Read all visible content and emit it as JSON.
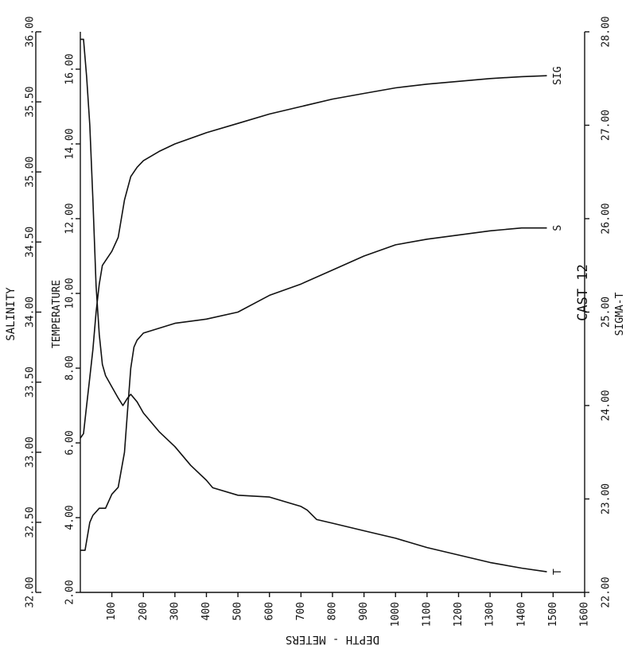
{
  "chart_data": {
    "type": "line",
    "cast_label": "CAST  12",
    "depth_axis": {
      "label": "DEPTH - METERS",
      "range": [
        0,
        1600
      ],
      "ticks": [
        "100",
        "200",
        "300",
        "400",
        "500",
        "600",
        "700",
        "800",
        "900",
        "1000",
        "1100",
        "1200",
        "1300",
        "1400",
        "1500",
        "1600"
      ]
    },
    "salinity_axis": {
      "label": "SALINITY",
      "range": [
        32.0,
        36.0
      ],
      "ticks": [
        "32.00",
        "32.50",
        "33.00",
        "33.50",
        "34.00",
        "34.50",
        "35.00",
        "35.50",
        "36.00"
      ]
    },
    "temperature_axis": {
      "label": "TEMPERATURE",
      "range": [
        2.0,
        17.0
      ],
      "ticks": [
        "2.00",
        "4.00",
        "6.00",
        "8.00",
        "10.00",
        "12.00",
        "14.00",
        "16.00"
      ]
    },
    "sigma_axis": {
      "label": "SIGMA-T",
      "range": [
        22.0,
        28.0
      ],
      "ticks": [
        "22.00",
        "23.00",
        "24.00",
        "25.00",
        "26.00",
        "27.00",
        "28.00"
      ]
    },
    "series": [
      {
        "name": "T",
        "axis": "temperature",
        "points": [
          [
            0,
            16.8
          ],
          [
            10,
            16.8
          ],
          [
            20,
            15.8
          ],
          [
            30,
            14.5
          ],
          [
            40,
            12.5
          ],
          [
            50,
            10.2
          ],
          [
            60,
            8.9
          ],
          [
            70,
            8.1
          ],
          [
            80,
            7.8
          ],
          [
            100,
            7.5
          ],
          [
            120,
            7.2
          ],
          [
            135,
            7.0
          ],
          [
            150,
            7.2
          ],
          [
            160,
            7.3
          ],
          [
            180,
            7.1
          ],
          [
            200,
            6.8
          ],
          [
            250,
            6.3
          ],
          [
            300,
            5.9
          ],
          [
            350,
            5.4
          ],
          [
            400,
            5.0
          ],
          [
            420,
            4.8
          ],
          [
            500,
            4.6
          ],
          [
            600,
            4.55
          ],
          [
            700,
            4.3
          ],
          [
            720,
            4.2
          ],
          [
            750,
            3.95
          ],
          [
            800,
            3.85
          ],
          [
            900,
            3.65
          ],
          [
            1000,
            3.45
          ],
          [
            1100,
            3.2
          ],
          [
            1200,
            3.0
          ],
          [
            1300,
            2.8
          ],
          [
            1400,
            2.65
          ],
          [
            1480,
            2.55
          ]
        ]
      },
      {
        "name": "S",
        "axis": "salinity",
        "points": [
          [
            0,
            32.3
          ],
          [
            15,
            32.3
          ],
          [
            30,
            32.5
          ],
          [
            40,
            32.55
          ],
          [
            60,
            32.6
          ],
          [
            80,
            32.6
          ],
          [
            100,
            32.7
          ],
          [
            120,
            32.75
          ],
          [
            140,
            33.0
          ],
          [
            150,
            33.3
          ],
          [
            160,
            33.6
          ],
          [
            170,
            33.75
          ],
          [
            180,
            33.8
          ],
          [
            200,
            33.85
          ],
          [
            300,
            33.92
          ],
          [
            400,
            33.95
          ],
          [
            500,
            34.0
          ],
          [
            600,
            34.12
          ],
          [
            700,
            34.2
          ],
          [
            800,
            34.3
          ],
          [
            900,
            34.4
          ],
          [
            1000,
            34.48
          ],
          [
            1100,
            34.52
          ],
          [
            1200,
            34.55
          ],
          [
            1300,
            34.58
          ],
          [
            1400,
            34.6
          ],
          [
            1480,
            34.6
          ]
        ]
      },
      {
        "name": "SIG",
        "axis": "sigma",
        "points": [
          [
            0,
            23.65
          ],
          [
            10,
            23.7
          ],
          [
            20,
            24.0
          ],
          [
            30,
            24.3
          ],
          [
            40,
            24.6
          ],
          [
            50,
            25.0
          ],
          [
            60,
            25.3
          ],
          [
            70,
            25.5
          ],
          [
            100,
            25.65
          ],
          [
            120,
            25.8
          ],
          [
            140,
            26.2
          ],
          [
            160,
            26.45
          ],
          [
            180,
            26.55
          ],
          [
            200,
            26.62
          ],
          [
            250,
            26.72
          ],
          [
            300,
            26.8
          ],
          [
            400,
            26.92
          ],
          [
            500,
            27.02
          ],
          [
            600,
            27.12
          ],
          [
            700,
            27.2
          ],
          [
            800,
            27.28
          ],
          [
            900,
            27.34
          ],
          [
            1000,
            27.4
          ],
          [
            1100,
            27.44
          ],
          [
            1200,
            27.47
          ],
          [
            1300,
            27.5
          ],
          [
            1400,
            27.52
          ],
          [
            1480,
            27.53
          ]
        ]
      }
    ]
  }
}
